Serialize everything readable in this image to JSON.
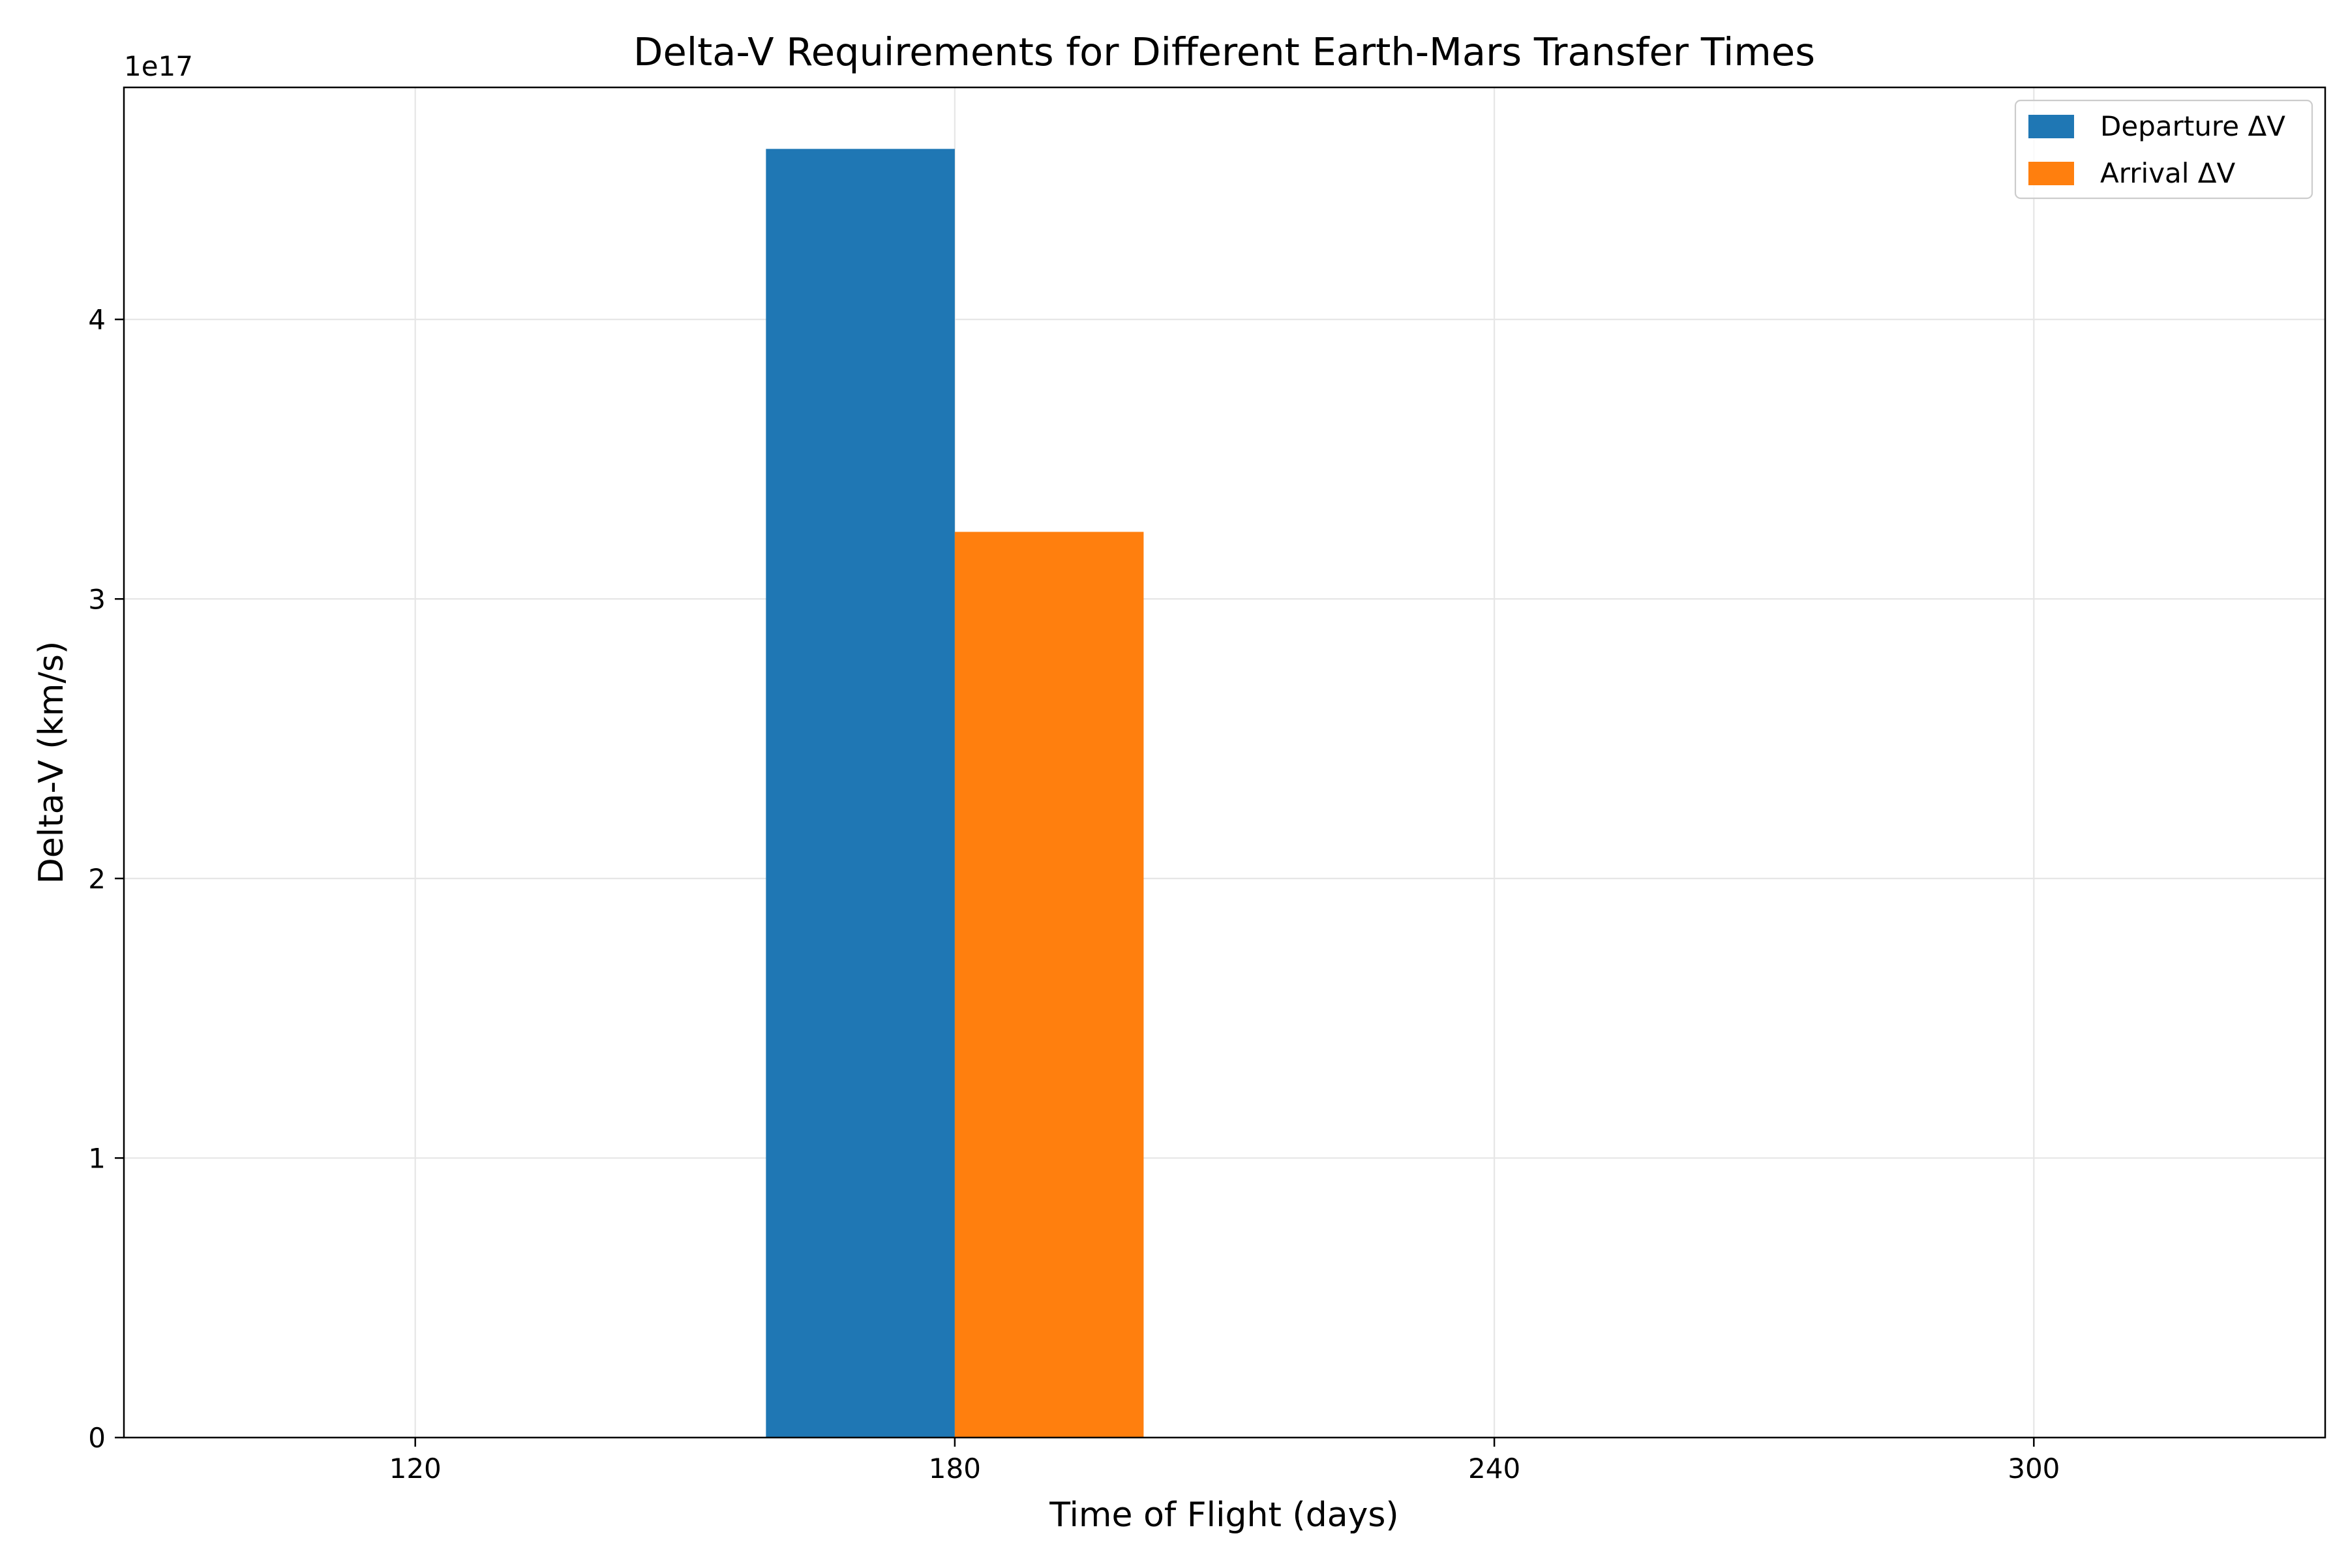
{
  "chart_data": {
    "type": "bar",
    "title": "Delta-V Requirements for Different Earth-Mars Transfer Times",
    "xlabel": "Time of Flight (days)",
    "ylabel": "Delta-V (km/s)",
    "offset_label": "1e17",
    "categories": [
      "120",
      "180",
      "240",
      "300"
    ],
    "y_ticks": [
      0,
      1,
      2,
      3,
      4
    ],
    "y_tick_labels": [
      "0",
      "1",
      "2",
      "3",
      "4"
    ],
    "ylim": [
      0,
      4.83
    ],
    "grid": true,
    "legend_position": "top-right",
    "series": [
      {
        "name": "Departure ΔV",
        "color": "#1f77b4",
        "values": [
          0,
          4.61,
          0,
          0
        ]
      },
      {
        "name": "Arrival ΔV",
        "color": "#ff7f0e",
        "values": [
          0,
          3.24,
          0,
          0
        ]
      }
    ]
  }
}
